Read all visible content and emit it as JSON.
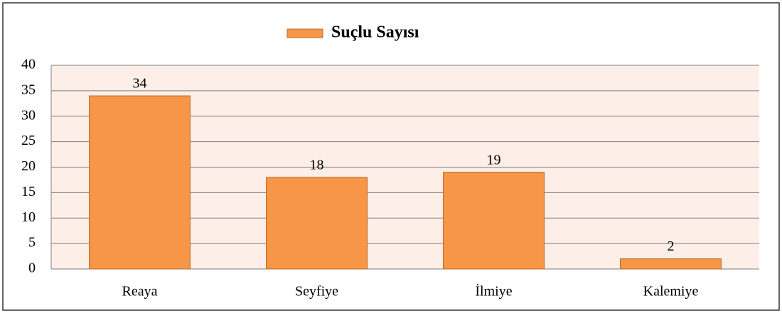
{
  "chart_data": {
    "type": "bar",
    "series": [
      {
        "name": "Suçlu Sayısı",
        "color": "#f79646",
        "values": [
          34,
          18,
          19,
          2
        ]
      }
    ],
    "categories": [
      "Reaya",
      "Seyfiye",
      "İlmiye",
      "Kalemiye"
    ],
    "ylim": [
      0,
      40
    ],
    "yticks": [
      0,
      5,
      10,
      15,
      20,
      25,
      30,
      35,
      40
    ],
    "grid": true,
    "legend": "top"
  }
}
